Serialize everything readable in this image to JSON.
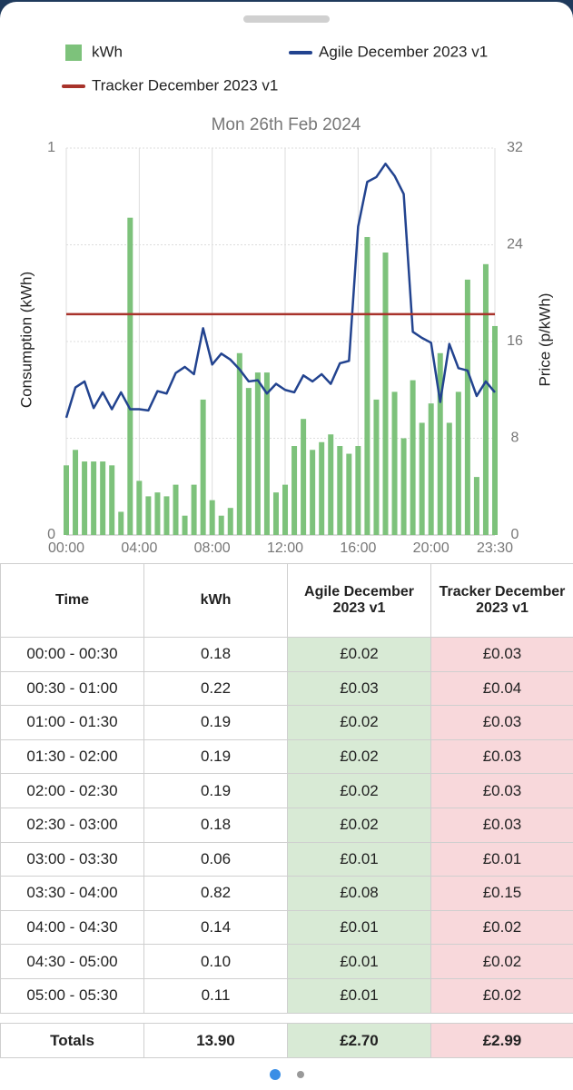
{
  "chart_data": {
    "type": "bar",
    "title": "Mon 26th Feb 2024",
    "ylabel": "Consumption (kWh)",
    "y2label": "Price (p/kWh)",
    "categories": [
      "00:00",
      null,
      null,
      null,
      null,
      null,
      null,
      null,
      "04:00",
      null,
      null,
      null,
      null,
      null,
      null,
      null,
      "08:00",
      null,
      null,
      null,
      null,
      null,
      null,
      null,
      "12:00",
      null,
      null,
      null,
      null,
      null,
      null,
      null,
      "16:00",
      null,
      null,
      null,
      null,
      null,
      null,
      null,
      "20:00",
      null,
      null,
      null,
      null,
      null,
      null,
      "23:30"
    ],
    "ylim": [
      0,
      1
    ],
    "yticks": [
      0,
      1
    ],
    "y2lim": [
      0,
      32
    ],
    "y2ticks": [
      0,
      8,
      16,
      24,
      32
    ],
    "grid": true,
    "series": [
      {
        "name": "kWh",
        "type": "bar",
        "color": "#7dc27b",
        "values": [
          0.18,
          0.22,
          0.19,
          0.19,
          0.19,
          0.18,
          0.06,
          0.82,
          0.14,
          0.1,
          0.11,
          0.1,
          0.13,
          0.05,
          0.13,
          0.35,
          0.09,
          0.05,
          0.07,
          0.47,
          0.38,
          0.42,
          0.42,
          0.11,
          0.13,
          0.23,
          0.3,
          0.22,
          0.24,
          0.26,
          0.23,
          0.21,
          0.23,
          0.77,
          0.35,
          0.73,
          0.37,
          0.25,
          0.4,
          0.29,
          0.34,
          0.47,
          0.29,
          0.37,
          0.66,
          0.15,
          0.7,
          0.54
        ]
      },
      {
        "name": "Agile December 2023 v1",
        "type": "line",
        "axis": "y2",
        "color": "#22438f",
        "values": [
          9.7,
          12.2,
          12.7,
          10.5,
          11.8,
          10.4,
          11.8,
          10.4,
          10.4,
          10.3,
          11.9,
          11.7,
          13.4,
          13.9,
          13.3,
          17.1,
          14.1,
          15.0,
          14.5,
          13.7,
          12.7,
          12.8,
          11.7,
          12.5,
          12.0,
          11.8,
          13.2,
          12.7,
          13.3,
          12.5,
          14.2,
          14.4,
          25.5,
          29.2,
          29.6,
          30.7,
          29.7,
          28.2,
          16.8,
          16.3,
          15.9,
          11.0,
          15.8,
          13.8,
          13.6,
          11.5,
          12.7,
          11.8
        ]
      },
      {
        "name": "Tracker December 2023 v1",
        "type": "line",
        "axis": "y2",
        "color": "#a8332b",
        "values": [
          18.26,
          18.26,
          18.26,
          18.26,
          18.26,
          18.26,
          18.26,
          18.26,
          18.26,
          18.26,
          18.26,
          18.26,
          18.26,
          18.26,
          18.26,
          18.26,
          18.26,
          18.26,
          18.26,
          18.26,
          18.26,
          18.26,
          18.26,
          18.26,
          18.26,
          18.26,
          18.26,
          18.26,
          18.26,
          18.26,
          18.26,
          18.26,
          18.26,
          18.26,
          18.26,
          18.26,
          18.26,
          18.26,
          18.26,
          18.26,
          18.26,
          18.26,
          18.26,
          18.26,
          18.26,
          18.26,
          18.26,
          18.26
        ]
      }
    ]
  },
  "table": {
    "columns": [
      "Time",
      "kWh",
      "Agile December 2023 v1",
      "Tracker December 2023 v1"
    ],
    "rows": [
      [
        "00:00 - 00:30",
        "0.18",
        "£0.02",
        "£0.03"
      ],
      [
        "00:30 - 01:00",
        "0.22",
        "£0.03",
        "£0.04"
      ],
      [
        "01:00 - 01:30",
        "0.19",
        "£0.02",
        "£0.03"
      ],
      [
        "01:30 - 02:00",
        "0.19",
        "£0.02",
        "£0.03"
      ],
      [
        "02:00 - 02:30",
        "0.19",
        "£0.02",
        "£0.03"
      ],
      [
        "02:30 - 03:00",
        "0.18",
        "£0.02",
        "£0.03"
      ],
      [
        "03:00 - 03:30",
        "0.06",
        "£0.01",
        "£0.01"
      ],
      [
        "03:30 - 04:00",
        "0.82",
        "£0.08",
        "£0.15"
      ],
      [
        "04:00 - 04:30",
        "0.14",
        "£0.01",
        "£0.02"
      ],
      [
        "04:30 - 05:00",
        "0.10",
        "£0.01",
        "£0.02"
      ],
      [
        "05:00 - 05:30",
        "0.11",
        "£0.01",
        "£0.02"
      ]
    ],
    "totals": [
      "Totals",
      "13.90",
      "£2.70",
      "£2.99"
    ]
  }
}
